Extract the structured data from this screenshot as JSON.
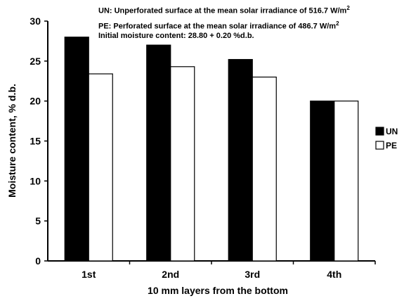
{
  "notes": {
    "un_text": "UN: Unperforated surface at the mean solar irradiance of 516.7 W/m",
    "pe_text": "PE: Perforated surface at the mean solar irradiance of 486.7 W/m",
    "sup": "2",
    "initial_text": "Initial moisture content: 28.80 + 0.20 %d.b."
  },
  "chart_data": {
    "type": "bar",
    "categories": [
      "1st",
      "2nd",
      "3rd",
      "4th"
    ],
    "series": [
      {
        "name": "UN",
        "values": [
          28.0,
          27.0,
          25.2,
          20.0
        ],
        "color": "#000000"
      },
      {
        "name": "PE",
        "values": [
          23.4,
          24.3,
          23.0,
          20.0
        ],
        "color": "#ffffff"
      }
    ],
    "xlabel": "10 mm layers from the bottom",
    "ylabel": "Moisture content, % d.b.",
    "ylim": [
      0,
      30
    ],
    "yticks": [
      0,
      5,
      10,
      15,
      20,
      25,
      30
    ],
    "grid": false,
    "legend": "right"
  }
}
